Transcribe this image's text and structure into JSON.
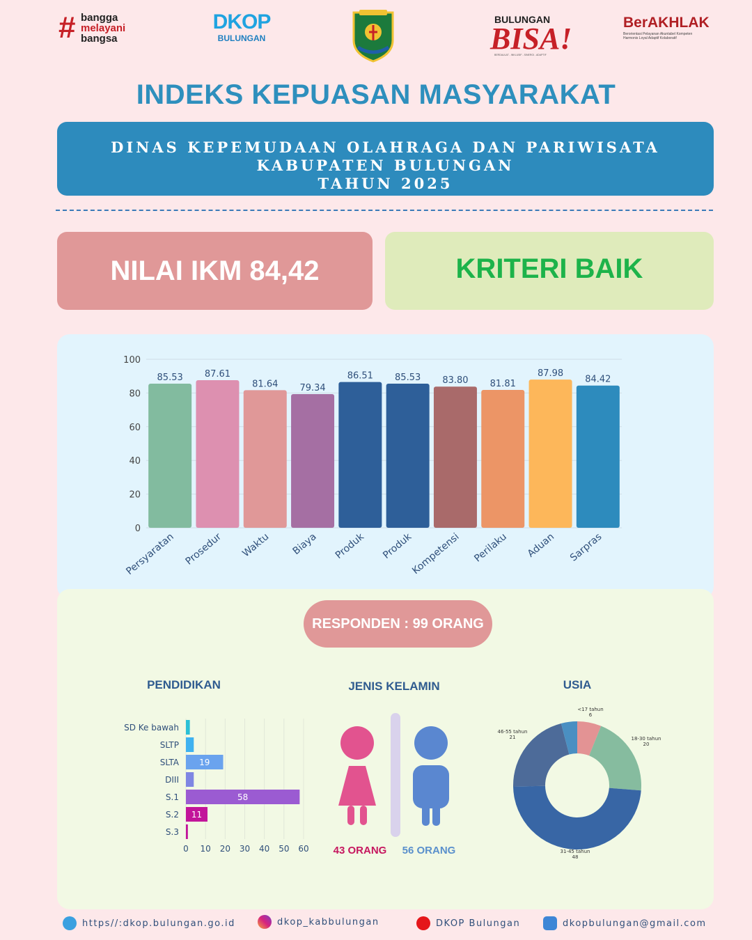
{
  "logos": {
    "bangga_line1": "bangga",
    "bangga_line2": "melayani",
    "bangga_line3": "bangsa",
    "dkop_text": "DKOP",
    "dkop_sub": "BULUNGAN",
    "bisa_top": "BULUNGAN",
    "bisa_main": "BISA!",
    "bisa_tag": "BERDAULAT - INKLUSIF - SINERGI - ADAPTIF",
    "berakhlak_text": "BerAKHLAK",
    "berakhlak_tag1": "Berorientasi Pelayanan Akuntabel Kompeten",
    "berakhlak_tag2": "Harmonis Loyal Adaptif Kolaboratif"
  },
  "title": "INDEKS KEPUASAN MASYARAKAT",
  "agency": {
    "line1": "DINAS KEPEMUDAAN OLAHRAGA DAN PARIWISATA",
    "line2": "KABUPATEN BULUNGAN",
    "line3": "TAHUN 2025"
  },
  "ikm_label": "NILAI IKM 84,42",
  "criteria_label": "KRITERI BAIK",
  "responden_label": "RESPONDEN : 99 ORANG",
  "colors": {
    "pendidikan": [
      "#2bc0d6",
      "#3fb2f0",
      "#6aa3ee",
      "#7f86e3",
      "#9b5bd2",
      "#c2159a",
      "#c2159a"
    ],
    "usia": [
      "#e39394",
      "#86bc9f",
      "#3866a5",
      "#4d6b99",
      "#4a8fc2"
    ],
    "female": "#e2538f",
    "male": "#5a87d0"
  },
  "chart_data": [
    {
      "type": "bar",
      "categories": [
        "Persyaratan",
        "Prosedur",
        "Waktu",
        "Biaya",
        "Produk",
        "Produk",
        "Kompetensi",
        "Perilaku",
        "Aduan",
        "Sarpras"
      ],
      "values": [
        85.53,
        87.61,
        81.64,
        79.34,
        86.51,
        85.53,
        83.8,
        81.81,
        87.98,
        84.42
      ],
      "value_labels": [
        "85.53",
        "87.61",
        "81.64",
        "79.34",
        "86.51",
        "85.53",
        "83.80",
        "81.81",
        "87.98",
        "84.42"
      ],
      "colors": [
        "#82bb9f",
        "#dd90b0",
        "#e09898",
        "#a56fa3",
        "#2e5f99",
        "#2e5f99",
        "#a96a6a",
        "#ec9566",
        "#fdb75a",
        "#2d8bbd"
      ],
      "yticks": [
        "0",
        "20",
        "40",
        "60",
        "80",
        "100"
      ],
      "ylim": [
        0,
        100
      ],
      "grid": true
    },
    {
      "type": "bar",
      "orientation": "horizontal",
      "title": "PENDIDIKAN",
      "categories": [
        "SD Ke bawah",
        "SLTP",
        "SLTA",
        "DIII",
        "S.1",
        "S.2",
        "S.3"
      ],
      "values": [
        2,
        4,
        19,
        4,
        58,
        11,
        1
      ],
      "value_labels": [
        "",
        "",
        "19",
        "",
        "58",
        "11",
        ""
      ],
      "xticks": [
        "0",
        "10",
        "20",
        "30",
        "40",
        "50",
        "60"
      ],
      "xlim": [
        0,
        60
      ],
      "grid": true
    },
    {
      "type": "pictogram",
      "title": "JENIS KELAMIN",
      "categories": [
        "Perempuan",
        "Laki-laki"
      ],
      "values": [
        43,
        56
      ],
      "value_labels": [
        "43 ORANG",
        "56 ORANG"
      ]
    },
    {
      "type": "pie",
      "title": "USIA",
      "donut": true,
      "labels": [
        "<17 tahun",
        "18-30 tahun",
        "31-45 tahun",
        "46-55 tahun",
        ""
      ],
      "values": [
        6,
        20,
        48,
        21,
        4
      ],
      "value_labels": [
        "6",
        "20",
        "48",
        "21",
        ""
      ]
    }
  ],
  "footer": {
    "website": "https//:dkop.bulungan.go.id",
    "instagram": "dkop_kabbulungan",
    "youtube": "DKOP Bulungan",
    "email": "dkopbulungan@gmail.com"
  }
}
